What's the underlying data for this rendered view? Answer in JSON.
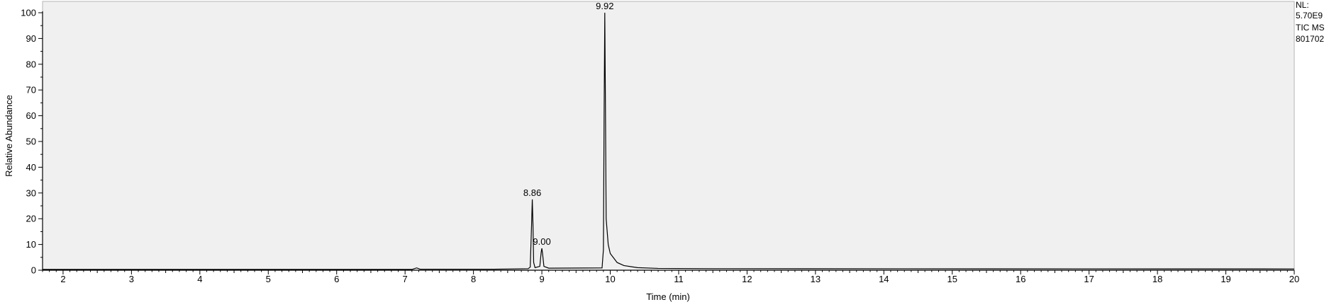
{
  "info": {
    "line1": "NL:",
    "line2": "5.70E9",
    "line3": "TIC  MS",
    "line4": "801702"
  },
  "chart_data": {
    "type": "line",
    "title": "",
    "xlabel": "Time (min)",
    "ylabel": "Relative Abundance",
    "xlim": [
      1.7,
      20.0
    ],
    "ylim": [
      0,
      100
    ],
    "x_ticks": [
      2,
      3,
      4,
      5,
      6,
      7,
      8,
      9,
      10,
      11,
      12,
      13,
      14,
      15,
      16,
      17,
      18,
      19,
      20
    ],
    "y_ticks": [
      0,
      10,
      20,
      30,
      40,
      50,
      60,
      70,
      80,
      90,
      100
    ],
    "grid": false,
    "legend": "none",
    "series": [
      {
        "color": "#000000",
        "points": [
          [
            1.7,
            0.3
          ],
          [
            7.1,
            0.3
          ],
          [
            7.17,
            0.9
          ],
          [
            7.22,
            0.4
          ],
          [
            8.3,
            0.4
          ],
          [
            8.8,
            0.6
          ],
          [
            8.83,
            1.2
          ],
          [
            8.85,
            18.0
          ],
          [
            8.86,
            27.5
          ],
          [
            8.87,
            18.0
          ],
          [
            8.88,
            3.0
          ],
          [
            8.9,
            1.0
          ],
          [
            8.97,
            1.5
          ],
          [
            8.99,
            7.0
          ],
          [
            9.0,
            8.5
          ],
          [
            9.01,
            6.5
          ],
          [
            9.03,
            1.5
          ],
          [
            9.1,
            0.8
          ],
          [
            9.88,
            0.9
          ],
          [
            9.9,
            8.0
          ],
          [
            9.91,
            60.0
          ],
          [
            9.92,
            100.0
          ],
          [
            9.93,
            62.0
          ],
          [
            9.94,
            20.0
          ],
          [
            9.97,
            10.0
          ],
          [
            10.0,
            6.5
          ],
          [
            10.1,
            3.0
          ],
          [
            10.2,
            1.8
          ],
          [
            10.4,
            1.0
          ],
          [
            10.7,
            0.7
          ],
          [
            11.5,
            0.6
          ],
          [
            20.0,
            0.5
          ]
        ]
      }
    ],
    "peak_labels": [
      {
        "x": 8.86,
        "y": 27.5,
        "text": "8.86"
      },
      {
        "x": 9.0,
        "y": 8.5,
        "text": "9.00"
      },
      {
        "x": 9.92,
        "y": 100.0,
        "text": "9.92"
      }
    ]
  }
}
